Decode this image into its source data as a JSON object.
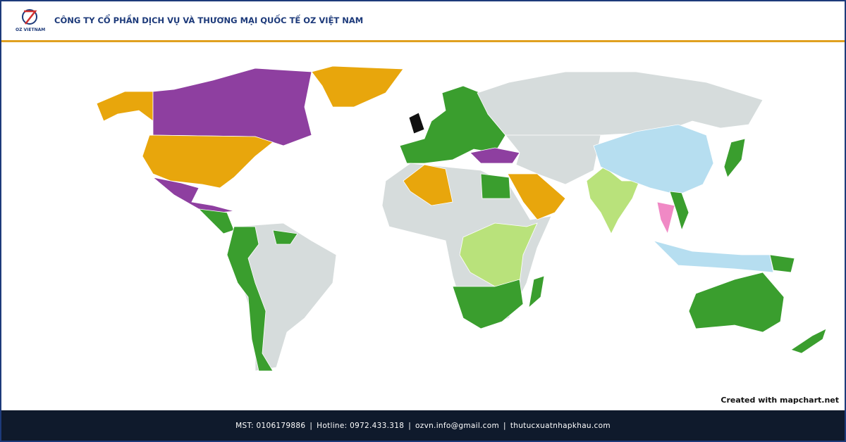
{
  "header": {
    "logo_text": "OZ VIETNAM",
    "title": "CÔNG TY CỔ PHẦN DỊCH VỤ VÀ THƯƠNG MẠI QUỐC TẾ OZ VIỆT NAM"
  },
  "map": {
    "credit": "Created with mapchart.net"
  },
  "footer": {
    "separator": "|",
    "items": [
      "MST: 0106179886",
      "Hotline: 0972.433.318",
      "ozvn.info@gmail.com",
      "thutucxuatnhapkhau.com"
    ]
  }
}
